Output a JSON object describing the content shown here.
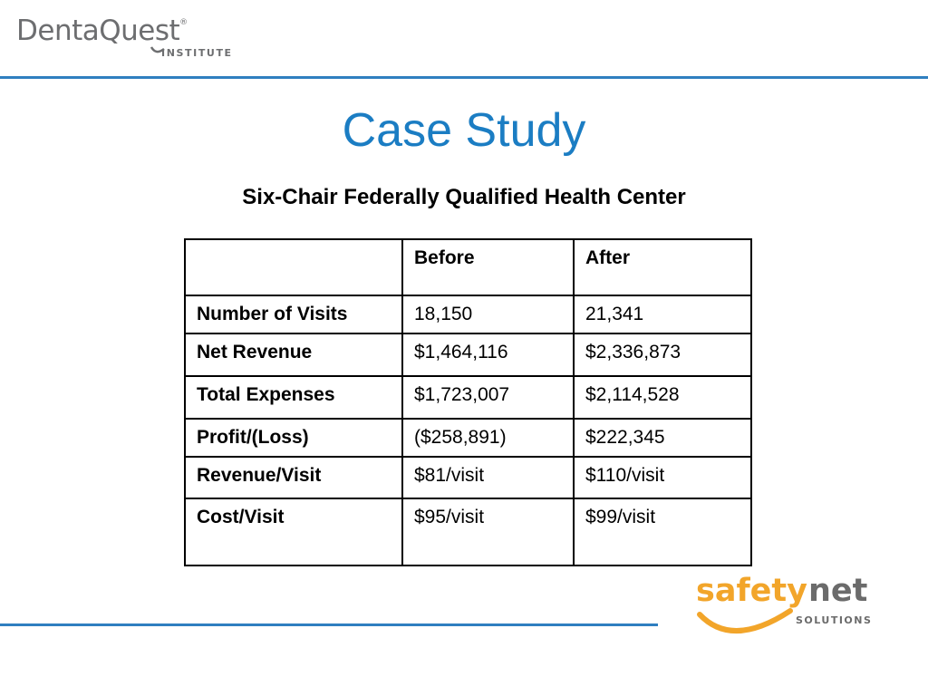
{
  "header": {
    "logo_wordmark": "DentaQuest",
    "logo_tm": "®",
    "logo_sub": "INSTITUTE",
    "logo_color": "#6d6e70",
    "rule_color": "#2f7fc0"
  },
  "title": "Case Study",
  "subtitle": "Six-Chair Federally Qualified Health Center",
  "table": {
    "headers": [
      "",
      "Before",
      "After"
    ],
    "rows": [
      {
        "label": "Number of Visits",
        "before": "18,150",
        "after": "21,341"
      },
      {
        "label": "Net Revenue",
        "before": "$1,464,116",
        "after": "$2,336,873"
      },
      {
        "label": "Total Expenses",
        "before": "$1,723,007",
        "after": "$2,114,528"
      },
      {
        "label": "Profit/(Loss)",
        "before": "($258,891)",
        "after": "$222,345"
      },
      {
        "label": "Revenue/Visit",
        "before": "$81/visit",
        "after": "$110/visit"
      },
      {
        "label": "Cost/Visit",
        "before": "$95/visit",
        "after": "$99/visit"
      }
    ]
  },
  "footer_logo": {
    "word1": "safety",
    "word2": "net",
    "word3": "SOLUTIONS",
    "orange": "#f2a52a",
    "gray": "#6b6b6b"
  },
  "colors": {
    "title": "#1b7dc3"
  }
}
